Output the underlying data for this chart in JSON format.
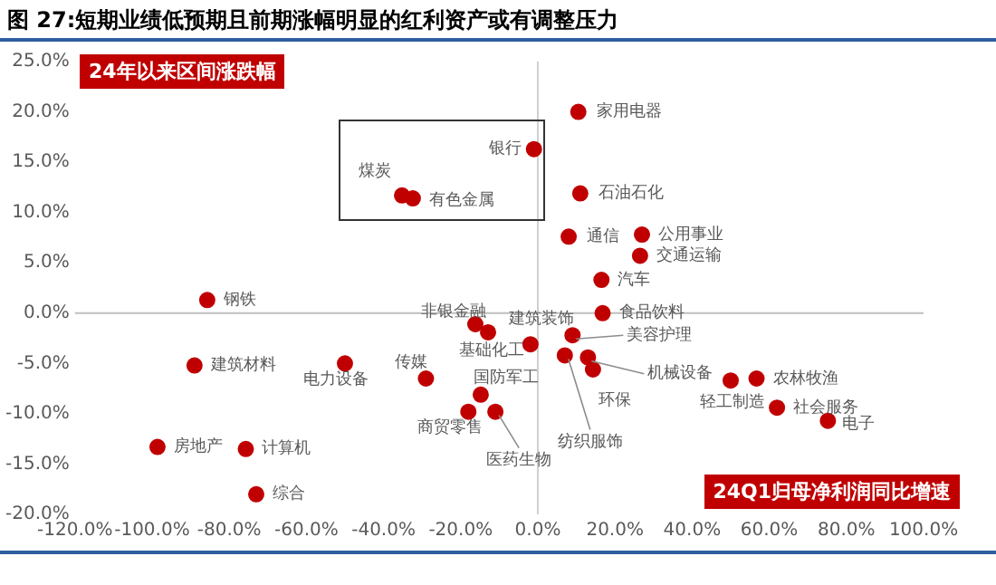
{
  "chart_data": {
    "type": "scatter",
    "title": "图 27:短期业绩低预期且前期涨幅明显的红利资产或有调整压力",
    "xlabel": "24Q1归母净利润同比增速",
    "ylabel": "24年以来区间涨跌幅",
    "x": [
      -85.7,
      -35.2,
      -32.4,
      -1,
      10.5,
      11,
      8,
      27,
      26.5,
      16.5,
      16.8,
      -16.2,
      -12.9,
      -1.9,
      9,
      7,
      13,
      14.3,
      -89,
      -50,
      -29,
      -14.8,
      -18,
      -11,
      -98.6,
      -75.7,
      -73,
      50,
      56.7,
      62,
      75.2
    ],
    "series": [
      {
        "color": "#c00000",
        "values": [
          1.3,
          11.7,
          11.4,
          16.3,
          20,
          11.9,
          7.6,
          7.8,
          5.7,
          3.3,
          0,
          -1.1,
          -1.9,
          -3.1,
          -2.2,
          -4.2,
          -4.4,
          -5.6,
          -5.2,
          -5,
          -6.5,
          -8.1,
          -9.8,
          -9.8,
          -13.3,
          -13.5,
          -18,
          -6.7,
          -6.5,
          -9.4,
          -10.7
        ]
      }
    ],
    "annotations": [
      {
        "text": "钢铁",
        "x": -85.7,
        "y": 1.3
      },
      {
        "text": "煤炭",
        "x": -35.2,
        "y": 11.7
      },
      {
        "text": "有色金属",
        "x": -32.4,
        "y": 11.4
      },
      {
        "text": "银行",
        "x": -1,
        "y": 16.3
      },
      {
        "text": "家用电器",
        "x": 10.5,
        "y": 20
      },
      {
        "text": "石油石化",
        "x": 11,
        "y": 11.9
      },
      {
        "text": "通信",
        "x": 8,
        "y": 7.6
      },
      {
        "text": "公用事业",
        "x": 27,
        "y": 7.8
      },
      {
        "text": "交通运输",
        "x": 26.5,
        "y": 5.7
      },
      {
        "text": "汽车",
        "x": 16.5,
        "y": 3.3
      },
      {
        "text": "食品饮料",
        "x": 16.8,
        "y": 0
      },
      {
        "text": "非银金融",
        "x": -16.2,
        "y": -1.1
      },
      {
        "text": "基础化工",
        "x": -12.9,
        "y": -1.9
      },
      {
        "text": "建筑装饰",
        "x": -1.9,
        "y": -3.1
      },
      {
        "text": "美容护理",
        "x": 9,
        "y": -2.2
      },
      {
        "text": "纺织服饰",
        "x": 7,
        "y": -4.2
      },
      {
        "text": "机械设备",
        "x": 13,
        "y": -4.4
      },
      {
        "text": "环保",
        "x": 14.3,
        "y": -5.6
      },
      {
        "text": "建筑材料",
        "x": -89,
        "y": -5.2
      },
      {
        "text": "电力设备",
        "x": -50,
        "y": -5
      },
      {
        "text": "传媒",
        "x": -29,
        "y": -6.5
      },
      {
        "text": "国防军工",
        "x": -14.8,
        "y": -8.1
      },
      {
        "text": "商贸零售",
        "x": -18,
        "y": -9.8
      },
      {
        "text": "医药生物",
        "x": -11,
        "y": -9.8
      },
      {
        "text": "房地产",
        "x": -98.6,
        "y": -13.3
      },
      {
        "text": "计算机",
        "x": -75.7,
        "y": -13.5
      },
      {
        "text": "综合",
        "x": -73,
        "y": -18
      },
      {
        "text": "轻工制造",
        "x": 50,
        "y": -6.7
      },
      {
        "text": "农林牧渔",
        "x": 56.7,
        "y": -6.5
      },
      {
        "text": "社会服务",
        "x": 62,
        "y": -9.4
      },
      {
        "text": "电子",
        "x": 75.2,
        "y": -10.7
      }
    ],
    "xlim": [
      -120,
      100
    ],
    "xticks": [
      {
        "value": -120,
        "label": "-120.0%"
      },
      {
        "value": -100,
        "label": "-100.0%"
      },
      {
        "value": -80,
        "label": "-80.0%"
      },
      {
        "value": -60,
        "label": "-60.0%"
      },
      {
        "value": -40,
        "label": "-40.0%"
      },
      {
        "value": -20,
        "label": "-20.0%"
      },
      {
        "value": 0,
        "label": "0.0%"
      },
      {
        "value": 20,
        "label": "20.0%"
      },
      {
        "value": 40,
        "label": "40.0%"
      },
      {
        "value": 60,
        "label": "60.0%"
      },
      {
        "value": 80,
        "label": "80.0%"
      },
      {
        "value": 100,
        "label": "100.0%"
      }
    ],
    "ylim": [
      -20,
      25
    ],
    "yticks": [
      {
        "value": -20,
        "label": "-20.0%"
      },
      {
        "value": -15,
        "label": "-15.0%"
      },
      {
        "value": -10,
        "label": "-10.0%"
      },
      {
        "value": -5,
        "label": "-5.0%"
      },
      {
        "value": 0,
        "label": "0.0%"
      },
      {
        "value": 5,
        "label": "5.0%"
      },
      {
        "value": 10,
        "label": "10.0%"
      },
      {
        "value": 15,
        "label": "15.0%"
      },
      {
        "value": 20,
        "label": "20.0%"
      },
      {
        "value": 25,
        "label": "25.0%"
      }
    ],
    "ref_lines": [
      {
        "axis": "x",
        "value": 0,
        "color": "#d0d0d0"
      },
      {
        "axis": "y",
        "value": 0,
        "color": "#bfbfbf"
      }
    ],
    "grid": false,
    "legend": false,
    "marker": "circle"
  }
}
